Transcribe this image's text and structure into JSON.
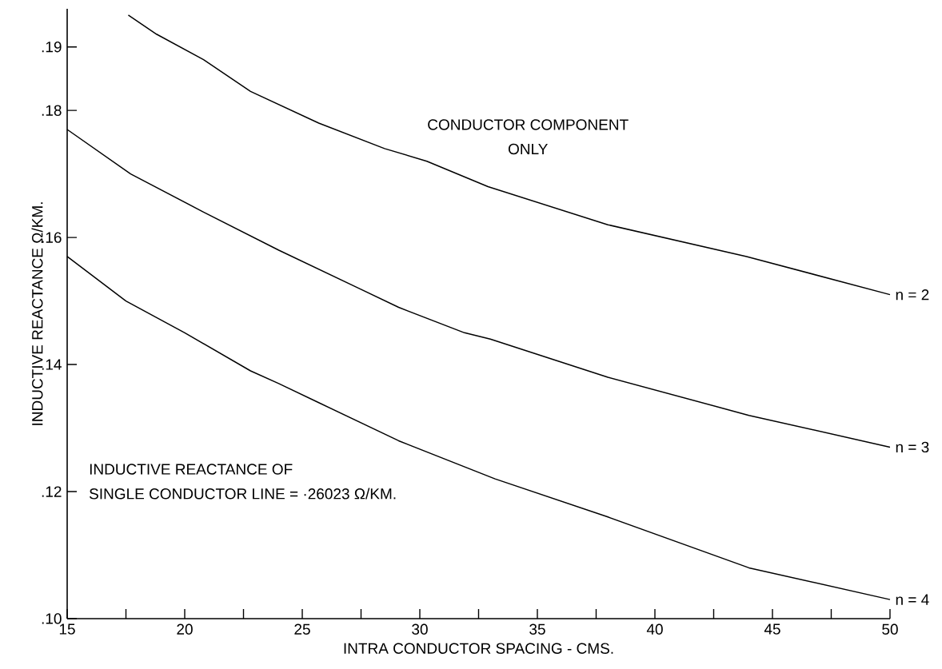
{
  "chart_data": {
    "type": "line",
    "xlabel": "INTRA CONDUCTOR SPACING - CMS.",
    "ylabel": "INDUCTIVE REACTANCE Ω/KM.",
    "xlim": [
      15,
      50
    ],
    "ylim": [
      0.1,
      0.196
    ],
    "xticks": [
      15,
      {
        "value": 17.5,
        "label": null
      },
      20,
      {
        "value": 22.5,
        "label": null
      },
      25,
      {
        "value": 27.5,
        "label": null
      },
      30,
      {
        "value": 32.5,
        "label": null
      },
      35,
      {
        "value": 37.5,
        "label": null
      },
      40,
      {
        "value": 42.5,
        "label": null
      },
      45,
      {
        "value": 47.5,
        "label": null
      },
      50
    ],
    "yticks": [
      {
        "value": 0.1,
        "label": ".10"
      },
      {
        "value": 0.12,
        "label": ".12"
      },
      {
        "value": 0.14,
        "label": ".14"
      },
      {
        "value": 0.16,
        "label": ".16"
      },
      {
        "value": 0.18,
        "label": ".18"
      },
      {
        "value": 0.19,
        "label": ".19"
      }
    ],
    "series": [
      {
        "name": "n = 2",
        "color": "#000000",
        "x": [
          17.6,
          18.8,
          20.8,
          22.8,
          25.7,
          28.5,
          30.3,
          32.9,
          38.0,
          43.9,
          50.0
        ],
        "values": [
          0.195,
          0.192,
          0.188,
          0.183,
          0.178,
          0.174,
          0.172,
          0.168,
          0.162,
          0.157,
          0.151
        ]
      },
      {
        "name": "n = 3",
        "color": "#000000",
        "x": [
          15.0,
          17.7,
          20.8,
          24.0,
          27.4,
          29.1,
          31.9,
          33.0,
          38.0,
          44.0,
          50.0
        ],
        "values": [
          0.177,
          0.17,
          0.164,
          0.158,
          0.152,
          0.149,
          0.145,
          0.144,
          0.138,
          0.132,
          0.127
        ]
      },
      {
        "name": "n = 4",
        "color": "#000000",
        "x": [
          15.0,
          17.5,
          20.0,
          22.8,
          24.0,
          25.7,
          29.1,
          33.2,
          38.0,
          44.0,
          50.0
        ],
        "values": [
          0.157,
          0.15,
          0.145,
          0.139,
          0.137,
          0.134,
          0.128,
          0.122,
          0.116,
          0.108,
          0.103
        ]
      }
    ],
    "annotations": [
      "CONDUCTOR COMPONENT",
      "ONLY",
      "INDUCTIVE REACTANCE OF",
      "SINGLE CONDUCTOR LINE = ·26023 Ω/KM."
    ]
  }
}
